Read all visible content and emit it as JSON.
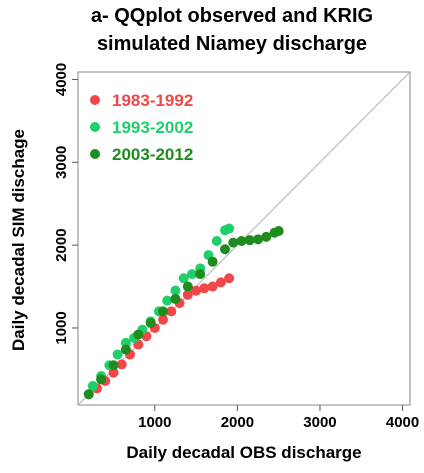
{
  "chart_data": {
    "type": "scatter",
    "title": "a- QQplot observed and KRIG",
    "subtitle": "simulated Niamey discharge",
    "x_label": "Daily decadal OBS discharge",
    "y_label": "Daily decadal SIM dischage",
    "xlim": [
      70,
      4090
    ],
    "ylim": [
      70,
      4090
    ],
    "xticks": [
      1000,
      2000,
      3000,
      4000
    ],
    "yticks": [
      1000,
      2000,
      3000,
      4000
    ],
    "legend": "top-left",
    "series": [
      {
        "name": "1983-1992",
        "color": "#f04848",
        "x": [
          200,
          300,
          400,
          500,
          600,
          700,
          800,
          900,
          1000,
          1100,
          1200,
          1300,
          1400,
          1500,
          1600,
          1700,
          1800,
          1900
        ],
        "values": [
          200,
          270,
          360,
          460,
          560,
          680,
          800,
          900,
          1000,
          1100,
          1200,
          1300,
          1400,
          1450,
          1480,
          1500,
          1550,
          1600
        ]
      },
      {
        "name": "1993-2002",
        "color": "#1fcf6a",
        "x": [
          250,
          350,
          450,
          550,
          650,
          750,
          850,
          950,
          1050,
          1150,
          1250,
          1350,
          1450,
          1550,
          1650,
          1750,
          1850,
          1900
        ],
        "values": [
          300,
          420,
          550,
          680,
          820,
          880,
          980,
          1080,
          1200,
          1330,
          1450,
          1600,
          1650,
          1720,
          1880,
          2050,
          2180,
          2200
        ]
      },
      {
        "name": "2003-2012",
        "color": "#1e8c1e",
        "x": [
          200,
          350,
          500,
          650,
          800,
          950,
          1100,
          1250,
          1400,
          1550,
          1700,
          1850,
          1950,
          2050,
          2150,
          2250,
          2350,
          2450,
          2500
        ],
        "values": [
          200,
          380,
          550,
          740,
          920,
          1060,
          1200,
          1350,
          1500,
          1650,
          1800,
          1950,
          2030,
          2050,
          2060,
          2070,
          2100,
          2150,
          2170
        ]
      }
    ]
  }
}
